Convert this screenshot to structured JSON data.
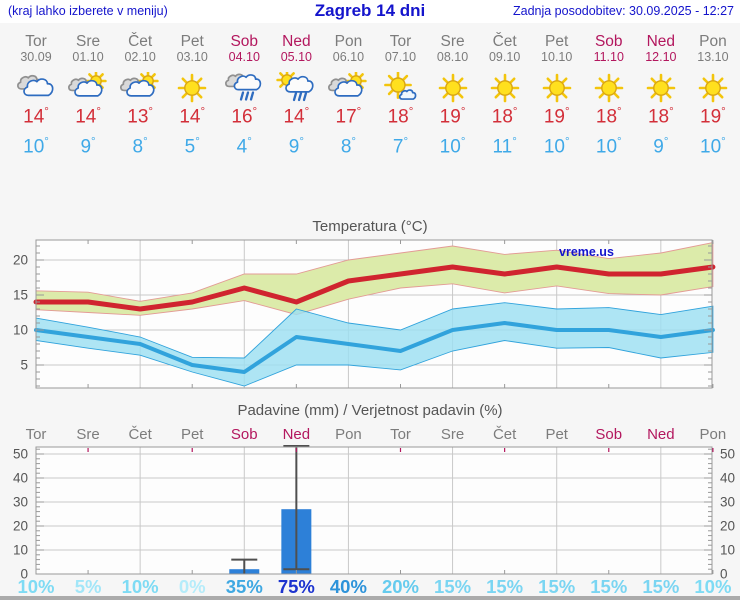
{
  "header": {
    "left_note": "(kraj lahko izberete v meniju)",
    "title": "Zagreb 14 dni",
    "last_update": "Zadnja posodobitev: 30.09.2025 - 12:27"
  },
  "units": {
    "degree": "°"
  },
  "colors": {
    "header_blue": "#1414cc",
    "day_gray": "#7c7c7c",
    "weekend": "#b3175e",
    "tmax_red": "#d32f39",
    "tmin_blue": "#3fa9e8"
  },
  "days": [
    {
      "name": "Tor",
      "date": "30.09",
      "weekend": false,
      "icon": "cloudy",
      "tmax": "14",
      "tmin": "10"
    },
    {
      "name": "Sre",
      "date": "01.10",
      "weekend": false,
      "icon": "partly-cloudy",
      "tmax": "14",
      "tmin": "9"
    },
    {
      "name": "Čet",
      "date": "02.10",
      "weekend": false,
      "icon": "partly-cloudy",
      "tmax": "13",
      "tmin": "8"
    },
    {
      "name": "Pet",
      "date": "03.10",
      "weekend": false,
      "icon": "sunny",
      "tmax": "14",
      "tmin": "5"
    },
    {
      "name": "Sob",
      "date": "04.10",
      "weekend": true,
      "icon": "rain",
      "tmax": "16",
      "tmin": "4"
    },
    {
      "name": "Ned",
      "date": "05.10",
      "weekend": true,
      "icon": "sun-rain",
      "tmax": "14",
      "tmin": "9"
    },
    {
      "name": "Pon",
      "date": "06.10",
      "weekend": false,
      "icon": "partly-cloudy",
      "tmax": "17",
      "tmin": "8"
    },
    {
      "name": "Tor",
      "date": "07.10",
      "weekend": false,
      "icon": "sun-small-cloud",
      "tmax": "18",
      "tmin": "7"
    },
    {
      "name": "Sre",
      "date": "08.10",
      "weekend": false,
      "icon": "sunny",
      "tmax": "19",
      "tmin": "10"
    },
    {
      "name": "Čet",
      "date": "09.10",
      "weekend": false,
      "icon": "sunny",
      "tmax": "18",
      "tmin": "11"
    },
    {
      "name": "Pet",
      "date": "10.10",
      "weekend": false,
      "icon": "sunny",
      "tmax": "19",
      "tmin": "10"
    },
    {
      "name": "Sob",
      "date": "11.10",
      "weekend": true,
      "icon": "sunny",
      "tmax": "18",
      "tmin": "10"
    },
    {
      "name": "Ned",
      "date": "12.10",
      "weekend": true,
      "icon": "sunny",
      "tmax": "18",
      "tmin": "9"
    },
    {
      "name": "Pon",
      "date": "13.10",
      "weekend": false,
      "icon": "sunny",
      "tmax": "19",
      "tmin": "10"
    }
  ],
  "chart_data": [
    {
      "type": "line",
      "title": "Temperatura (°C)",
      "watermark": "vreme.us",
      "x_labels": [
        "Tor",
        "Sre",
        "Čet",
        "Pet",
        "Sob",
        "Ned",
        "Pon",
        "Tor",
        "Sre",
        "Čet",
        "Pet",
        "Sob",
        "Ned",
        "Pon"
      ],
      "ylim": [
        1.5,
        23
      ],
      "yticks": [
        5,
        10,
        15,
        20
      ],
      "grid": true,
      "legend": "none",
      "series": [
        {
          "name": "max temperatura",
          "color": "#d0242f",
          "band_fill": "#dcebaa",
          "band_edge": "#e39b95",
          "values": [
            14,
            14,
            13,
            14,
            16,
            14,
            17,
            18,
            19,
            18,
            19,
            18,
            18,
            19
          ],
          "upper": [
            15.6,
            15.4,
            14.1,
            15.3,
            18.0,
            18.0,
            20.0,
            21.0,
            22.0,
            20.8,
            21.4,
            20.2,
            21.0,
            22.5
          ],
          "lower": [
            12.9,
            12.5,
            12.1,
            13.0,
            14.2,
            12.2,
            14.4,
            16.0,
            16.6,
            15.3,
            16.3,
            15.2,
            15.0,
            16.2
          ]
        },
        {
          "name": "min temperatura",
          "color": "#31a3dc",
          "band_fill": "#9cdff2",
          "band_edge": "#31a3dc",
          "values": [
            10,
            9,
            8,
            5,
            4,
            9,
            8,
            7,
            10,
            11,
            10,
            10,
            9,
            10
          ],
          "upper": [
            11.7,
            10.4,
            9.0,
            6.1,
            6.0,
            13.0,
            11.0,
            10.0,
            13.0,
            13.9,
            13.0,
            13.2,
            12.2,
            13.4
          ],
          "lower": [
            8.5,
            7.4,
            6.4,
            4.0,
            2.0,
            5.0,
            5.0,
            4.3,
            7.0,
            8.5,
            7.4,
            7.5,
            6.0,
            6.8
          ]
        }
      ]
    },
    {
      "type": "bar",
      "title": "Padavine (mm) / Verjetnost padavin (%)",
      "categories": [
        {
          "label": "Tor",
          "weekend": false
        },
        {
          "label": "Sre",
          "weekend": false
        },
        {
          "label": "Čet",
          "weekend": false
        },
        {
          "label": "Pet",
          "weekend": false
        },
        {
          "label": "Sob",
          "weekend": true
        },
        {
          "label": "Ned",
          "weekend": true
        },
        {
          "label": "Pon",
          "weekend": false
        },
        {
          "label": "Tor",
          "weekend": false
        },
        {
          "label": "Sre",
          "weekend": false
        },
        {
          "label": "Čet",
          "weekend": false
        },
        {
          "label": "Pet",
          "weekend": false
        },
        {
          "label": "Sob",
          "weekend": true
        },
        {
          "label": "Ned",
          "weekend": true
        },
        {
          "label": "Pon",
          "weekend": false
        }
      ],
      "values": [
        0,
        0,
        0,
        0,
        2,
        27,
        0,
        0,
        0,
        0,
        0,
        0,
        0,
        0
      ],
      "whiskers": [
        null,
        null,
        null,
        null,
        {
          "low": 0,
          "high": 6
        },
        {
          "low": 2,
          "high": 53
        },
        null,
        null,
        null,
        null,
        null,
        null,
        null,
        null
      ],
      "ylim": [
        0,
        53
      ],
      "yticks": [
        0,
        10,
        20,
        30,
        40,
        50
      ],
      "bar_color": "#2d80d8",
      "whisker_color": "#4f4f4f",
      "probabilities": [
        {
          "label": "10%",
          "color": "#7edbf4"
        },
        {
          "label": "5%",
          "color": "#a2e6f8"
        },
        {
          "label": "10%",
          "color": "#7edbf4"
        },
        {
          "label": "0%",
          "color": "#b5ecfa"
        },
        {
          "label": "35%",
          "color": "#3fa8e2"
        },
        {
          "label": "75%",
          "color": "#1c33cf"
        },
        {
          "label": "40%",
          "color": "#2d93da"
        },
        {
          "label": "20%",
          "color": "#65cbee"
        },
        {
          "label": "15%",
          "color": "#7ad5f2"
        },
        {
          "label": "15%",
          "color": "#7ad5f2"
        },
        {
          "label": "15%",
          "color": "#7ad5f2"
        },
        {
          "label": "15%",
          "color": "#7ad5f2"
        },
        {
          "label": "15%",
          "color": "#7ad5f2"
        },
        {
          "label": "10%",
          "color": "#7edbf4"
        }
      ]
    }
  ]
}
